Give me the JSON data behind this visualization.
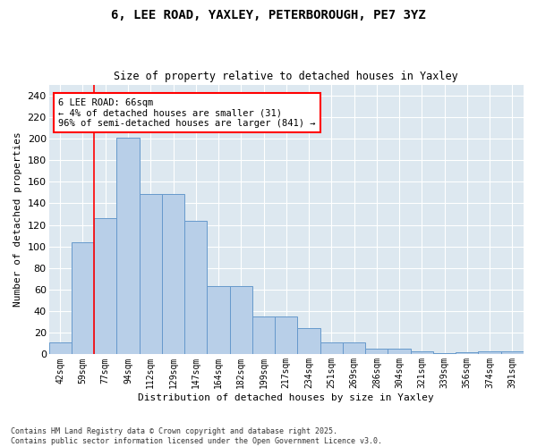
{
  "title_line1": "6, LEE ROAD, YAXLEY, PETERBOROUGH, PE7 3YZ",
  "title_line2": "Size of property relative to detached houses in Yaxley",
  "xlabel": "Distribution of detached houses by size in Yaxley",
  "ylabel": "Number of detached properties",
  "categories": [
    "42sqm",
    "59sqm",
    "77sqm",
    "94sqm",
    "112sqm",
    "129sqm",
    "147sqm",
    "164sqm",
    "182sqm",
    "199sqm",
    "217sqm",
    "234sqm",
    "251sqm",
    "269sqm",
    "286sqm",
    "304sqm",
    "321sqm",
    "339sqm",
    "356sqm",
    "374sqm",
    "391sqm"
  ],
  "values": [
    11,
    104,
    126,
    201,
    149,
    149,
    124,
    63,
    63,
    35,
    35,
    24,
    11,
    11,
    5,
    5,
    3,
    1,
    2,
    3,
    3
  ],
  "bar_color": "#b8cfe8",
  "bar_edge_color": "#6699cc",
  "bar_width": 1.0,
  "ylim": [
    0,
    250
  ],
  "yticks": [
    0,
    20,
    40,
    60,
    80,
    100,
    120,
    140,
    160,
    180,
    200,
    220,
    240
  ],
  "red_line_x": 1.5,
  "annotation_line1": "6 LEE ROAD: 66sqm",
  "annotation_line2": "← 4% of detached houses are smaller (31)",
  "annotation_line3": "96% of semi-detached houses are larger (841) →",
  "background_color": "#dde8f0",
  "grid_color": "#ffffff",
  "footer_line1": "Contains HM Land Registry data © Crown copyright and database right 2025.",
  "footer_line2": "Contains public sector information licensed under the Open Government Licence v3.0."
}
